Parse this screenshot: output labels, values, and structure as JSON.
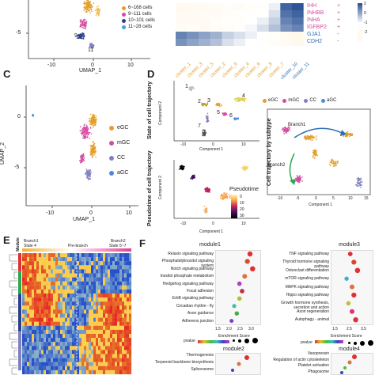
{
  "panel_labels": {
    "C": "C",
    "D": "D",
    "E": "E",
    "F": "F"
  },
  "top_legend": {
    "items": [
      {
        "text": "6~168 cells",
        "color": "#e39e2c"
      },
      {
        "text": "9~111 cells",
        "color": "#d64aa0"
      },
      {
        "text": "10~101 cells",
        "color": "#2c3e8c"
      },
      {
        "text": "11~28 cells",
        "color": "#4aa0d6"
      }
    ],
    "ytick_neg5": "-5",
    "xticks": [
      "-10",
      "0",
      "10"
    ],
    "xlabel": "UMAP_1",
    "cluster_labels": [
      "9",
      "11"
    ]
  },
  "heatmap_top": {
    "genes": [
      "IHH",
      "INHBB",
      "INHA",
      "IGFBP2",
      "GJA1",
      "CDH2"
    ],
    "stars": [
      "+",
      "+",
      "+",
      "+",
      "-",
      "-"
    ],
    "clusters": [
      "cluster_1",
      "cluster_3",
      "cluster_5",
      "cluster_2",
      "cluster_9",
      "cluster_4",
      "cluster_6",
      "cluster_8",
      "cluster_7",
      "cluster_10",
      "cluster_11"
    ],
    "cluster_colors": [
      "#e39e2c",
      "#e39e2c",
      "#e39e2c",
      "#e39e2c",
      "#e39e2c",
      "#e39e2c",
      "#e39e2c",
      "#e39e2c",
      "#e39e2c",
      "#2c6fb3",
      "#2c6fb3"
    ],
    "legend_ticks": [
      "2",
      "0",
      "-1",
      "-2"
    ]
  },
  "panel_c": {
    "ytick_0": "0",
    "ytick_neg5": "-5",
    "ylabel": "UMAP_2",
    "xticks": [
      "-10",
      "0",
      "10"
    ],
    "xlabel": "UMAP_1",
    "legend": [
      {
        "text": "eGC",
        "color": "#e39e2c"
      },
      {
        "text": "mGC",
        "color": "#d64aa0"
      },
      {
        "text": "CC",
        "color": "#8080c0"
      },
      {
        "text": "aGC",
        "color": "#4a8ad6"
      }
    ]
  },
  "panel_d": {
    "side_title_1": "State of cell trajectory",
    "side_title_2": "Pseudotime of cell trajectory",
    "side_title_3": "Cell trajectory by subtype",
    "ylabel": "Component 2",
    "xlabel": "Component 1",
    "state_labels": [
      "1",
      "2",
      "3",
      "4",
      "5",
      "6",
      "7"
    ],
    "xticks": [
      "-10",
      "-5",
      "0",
      "5",
      "10",
      "15"
    ],
    "pseudotime_title": "Pseudotime",
    "pseudotime_ticks": [
      "0",
      "10",
      "20",
      "30"
    ],
    "subtype_legend": [
      {
        "text": "eGC",
        "color": "#e39e2c"
      },
      {
        "text": "mGC",
        "color": "#d64aa0"
      },
      {
        "text": "CC",
        "color": "#8080c0"
      },
      {
        "text": "aGC",
        "color": "#4a8ad6"
      }
    ],
    "branch1": "Branch1",
    "branch2": "Branch2"
  },
  "panel_e": {
    "module_label": "Module",
    "branch1": "Branch1",
    "state4": "State 4",
    "prebranch": "Pre-branch",
    "branch2": "Branch2",
    "state567": "State 5~7"
  },
  "panel_f": {
    "module1": {
      "title": "module1",
      "terms": [
        "Relaxin signaling pathway",
        "Phosphatidylinositol signaling system",
        "Notch signaling pathway",
        "Inositol phosphate metabolism",
        "Hedgehog signaling pathway",
        "Focal adhesion",
        "ErbB signaling pathway",
        "Circadian rhythm - fly",
        "Axon guidance",
        "Adherens junction"
      ],
      "points": [
        [
          2.7,
          "#e03030"
        ],
        [
          2.6,
          "#d84a30"
        ],
        [
          2.8,
          "#e03030"
        ],
        [
          2.5,
          "#e07040"
        ],
        [
          2.3,
          "#b040c0"
        ],
        [
          2.4,
          "#c03040"
        ],
        [
          2.3,
          "#b0c030"
        ],
        [
          2.1,
          "#40c0a0"
        ],
        [
          2.2,
          "#40b040"
        ],
        [
          2.0,
          "#8040c0"
        ]
      ],
      "xticks": [
        "1.5",
        "2.0",
        "2.5",
        "3.0"
      ]
    },
    "module3": {
      "title": "module3",
      "terms": [
        "TNF signaling pathway",
        "Thyroid hormone signaling pathway",
        "Osteoclast differentiation",
        "mTOR signaling pathway",
        "MAPK signaling pathway",
        "Hippo signaling pathway",
        "Growth hormone synthesis, secretion and action",
        "Axon regeneration",
        "Autophagy - animal"
      ],
      "points": [
        [
          2.4,
          "#e03030"
        ],
        [
          2.6,
          "#d84a30"
        ],
        [
          2.8,
          "#e03030"
        ],
        [
          2.2,
          "#40b0d0"
        ],
        [
          2.5,
          "#e07040"
        ],
        [
          2.6,
          "#e03030"
        ],
        [
          2.3,
          "#c0c040"
        ],
        [
          2.5,
          "#e03080"
        ],
        [
          2.7,
          "#e03030"
        ]
      ],
      "xticks": [
        "1.5",
        "2.5",
        "3.5"
      ]
    },
    "legend_pvalue": "pvalue",
    "enrichment_score": "Enrichment Score",
    "size_ticks": [
      "1",
      "2",
      "3",
      "4"
    ],
    "module2": {
      "title": "module2",
      "terms": [
        "Thermogenesis",
        "Terpenoid backbone biosynthesis",
        "Spliceosome"
      ]
    },
    "module4": {
      "title": "module4",
      "terms": [
        "Vasopressin",
        "Regulation of actin cytoskeleton",
        "Platelet activation",
        "Phagosome"
      ]
    }
  }
}
